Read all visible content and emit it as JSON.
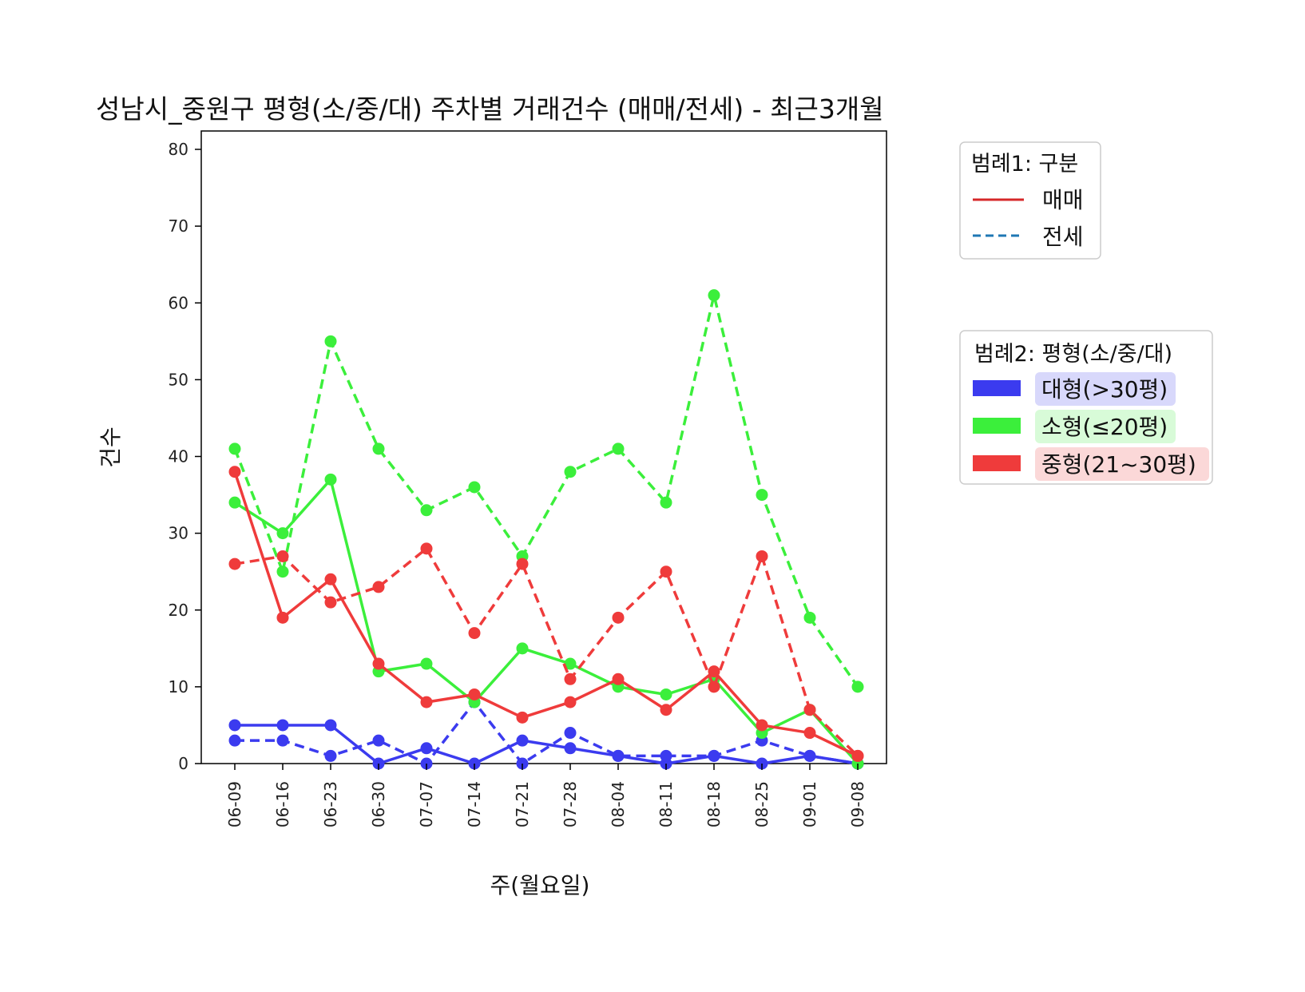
{
  "chart_data": {
    "type": "line",
    "title": "성남시_중원구 평형(소/중/대) 주차별 거래건수 (매매/전세) - 최근3개월",
    "xlabel": "주(월요일)",
    "ylabel": "건수",
    "ylim": [
      0,
      80
    ],
    "yticks": [
      "0",
      "10",
      "20",
      "30",
      "40",
      "50",
      "60",
      "70",
      "80"
    ],
    "categories": [
      "06-09",
      "06-16",
      "06-23",
      "06-30",
      "07-07",
      "07-14",
      "07-21",
      "07-28",
      "08-04",
      "08-11",
      "08-18",
      "08-25",
      "09-01",
      "09-08"
    ],
    "grid": false,
    "series": [
      {
        "name": "대형(>30평) 매매",
        "size_class": "대형",
        "kind": "매매",
        "color": "#3b3bef",
        "dash": "solid",
        "values": [
          5,
          5,
          5,
          0,
          2,
          0,
          3,
          2,
          1,
          0,
          1,
          0,
          1,
          0
        ]
      },
      {
        "name": "대형(>30평) 전세",
        "size_class": "대형",
        "kind": "전세",
        "color": "#3b3bef",
        "dash": "dashed",
        "values": [
          3,
          3,
          1,
          3,
          0,
          8,
          0,
          4,
          1,
          1,
          1,
          3,
          1,
          0
        ]
      },
      {
        "name": "소형(≤20평) 매매",
        "size_class": "소형",
        "kind": "매매",
        "color": "#3bef3b",
        "dash": "solid",
        "values": [
          34,
          30,
          37,
          12,
          13,
          8,
          15,
          13,
          10,
          9,
          11,
          4,
          7,
          0
        ]
      },
      {
        "name": "소형(≤20평) 전세",
        "size_class": "소형",
        "kind": "전세",
        "color": "#3bef3b",
        "dash": "dashed",
        "values": [
          41,
          25,
          55,
          41,
          33,
          36,
          27,
          38,
          41,
          34,
          61,
          35,
          19,
          10
        ]
      },
      {
        "name": "중형(21~30평) 매매",
        "size_class": "중형",
        "kind": "매매",
        "color": "#ef3b3b",
        "dash": "solid",
        "values": [
          38,
          19,
          24,
          13,
          8,
          9,
          6,
          8,
          11,
          7,
          12,
          5,
          4,
          1
        ]
      },
      {
        "name": "중형(21~30평) 전세",
        "size_class": "중형",
        "kind": "전세",
        "color": "#ef3b3b",
        "dash": "dashed",
        "values": [
          26,
          27,
          21,
          23,
          28,
          17,
          26,
          11,
          19,
          25,
          10,
          27,
          7,
          1
        ]
      }
    ],
    "legend1": {
      "title": "범례1: 구분",
      "placement": "right-top",
      "items": [
        {
          "label": "매매",
          "color": "#d62728",
          "dash": "solid"
        },
        {
          "label": "전세",
          "color": "#1f77b4",
          "dash": "dashed"
        }
      ]
    },
    "legend2": {
      "title": "범례2: 평형(소/중/대)",
      "placement": "right-middle",
      "items": [
        {
          "label": "대형(>30평)",
          "color": "#3b3bef",
          "bg": "#d8d8fb"
        },
        {
          "label": "소형(≤20평)",
          "color": "#3bef3b",
          "bg": "#d8fbd8"
        },
        {
          "label": "중형(21~30평)",
          "color": "#ef3b3b",
          "bg": "#fbd8d8"
        }
      ]
    }
  }
}
